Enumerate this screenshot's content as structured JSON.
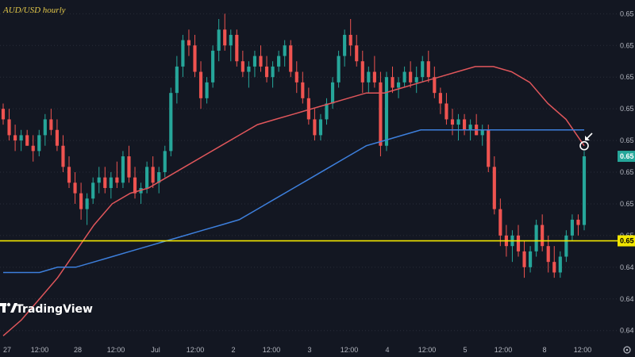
{
  "chart_data": {
    "type": "candlestick",
    "title": "AUD/USD hourly",
    "colors": {
      "background": "#131722",
      "up": "#26a69a",
      "down": "#ef5350",
      "ma_red": "#e0565b",
      "ma_blue": "#3d7fdc",
      "support_line": "#f2e600",
      "grid": "#2a2e39",
      "current_price_label": "#26a69a",
      "current_price_text": "#ffffff",
      "support_label": "#f2e600",
      "support_label_text": "#000000"
    },
    "x_ticks": [
      "27",
      "12:00",
      "28",
      "12:00",
      "Jul",
      "12:00",
      "2",
      "12:00",
      "3",
      "12:00",
      "4",
      "12:00",
      "5",
      "12:00",
      "8",
      "12:00"
    ],
    "y_ticks": [
      "0.65",
      "0.65",
      "0.65",
      "0.65",
      "0.65",
      "0.65",
      "0.65",
      "0.65",
      "0.64",
      "0.64",
      "0.64"
    ],
    "y_tick_values": [
      0.6578,
      0.6572,
      0.6566,
      0.656,
      0.6554,
      0.6548,
      0.6542,
      0.6536,
      0.653,
      0.6524,
      0.6518
    ],
    "ylim": [
      0.6516,
      0.658
    ],
    "current_price_label": "0.65",
    "support_label": "0.65",
    "support_level": 0.6535,
    "candles": [
      [
        0.656,
        0.6561,
        0.6557,
        0.6558
      ],
      [
        0.6558,
        0.656,
        0.6554,
        0.6555
      ],
      [
        0.6555,
        0.6557,
        0.6552,
        0.6554
      ],
      [
        0.6554,
        0.6556,
        0.6552,
        0.6555
      ],
      [
        0.6555,
        0.6556,
        0.6553,
        0.6553
      ],
      [
        0.6553,
        0.6555,
        0.655,
        0.6552
      ],
      [
        0.6552,
        0.6556,
        0.6551,
        0.6555
      ],
      [
        0.6555,
        0.6559,
        0.6553,
        0.6558
      ],
      [
        0.6558,
        0.656,
        0.6555,
        0.6556
      ],
      [
        0.6556,
        0.6558,
        0.6552,
        0.6553
      ],
      [
        0.6553,
        0.6555,
        0.6548,
        0.6549
      ],
      [
        0.6549,
        0.6551,
        0.6545,
        0.6546
      ],
      [
        0.6546,
        0.6548,
        0.6542,
        0.6544
      ],
      [
        0.6544,
        0.6546,
        0.6539,
        0.6541
      ],
      [
        0.6541,
        0.6544,
        0.6538,
        0.6543
      ],
      [
        0.6543,
        0.6547,
        0.6542,
        0.6546
      ],
      [
        0.6546,
        0.6549,
        0.6544,
        0.6547
      ],
      [
        0.6547,
        0.6549,
        0.6544,
        0.6545
      ],
      [
        0.6545,
        0.6548,
        0.6543,
        0.6547
      ],
      [
        0.6547,
        0.655,
        0.6545,
        0.6546
      ],
      [
        0.6546,
        0.6552,
        0.6545,
        0.6551
      ],
      [
        0.6551,
        0.6553,
        0.6546,
        0.6547
      ],
      [
        0.6547,
        0.6549,
        0.6543,
        0.6544
      ],
      [
        0.6544,
        0.6546,
        0.6542,
        0.6545
      ],
      [
        0.6545,
        0.655,
        0.6544,
        0.6549
      ],
      [
        0.6549,
        0.6551,
        0.6545,
        0.6546
      ],
      [
        0.6546,
        0.6549,
        0.6544,
        0.6548
      ],
      [
        0.6548,
        0.6553,
        0.6547,
        0.6552
      ],
      [
        0.6552,
        0.6564,
        0.6551,
        0.6563
      ],
      [
        0.6563,
        0.657,
        0.6561,
        0.6568
      ],
      [
        0.6568,
        0.6574,
        0.6566,
        0.6573
      ],
      [
        0.6573,
        0.6575,
        0.657,
        0.6572
      ],
      [
        0.6572,
        0.6574,
        0.6566,
        0.6567
      ],
      [
        0.6567,
        0.6569,
        0.656,
        0.6562
      ],
      [
        0.6562,
        0.6566,
        0.6561,
        0.6565
      ],
      [
        0.6565,
        0.6572,
        0.6564,
        0.6571
      ],
      [
        0.6571,
        0.6577,
        0.6569,
        0.6575
      ],
      [
        0.6575,
        0.6578,
        0.6571,
        0.6572
      ],
      [
        0.6572,
        0.6575,
        0.6569,
        0.6574
      ],
      [
        0.6574,
        0.6575,
        0.6568,
        0.6569
      ],
      [
        0.6569,
        0.6571,
        0.6566,
        0.6567
      ],
      [
        0.6567,
        0.6569,
        0.6564,
        0.6568
      ],
      [
        0.6568,
        0.6571,
        0.6566,
        0.657
      ],
      [
        0.657,
        0.6572,
        0.6567,
        0.6568
      ],
      [
        0.6568,
        0.657,
        0.6565,
        0.6566
      ],
      [
        0.6566,
        0.6569,
        0.6564,
        0.6568
      ],
      [
        0.6568,
        0.6571,
        0.6567,
        0.657
      ],
      [
        0.657,
        0.6573,
        0.6568,
        0.6572
      ],
      [
        0.6572,
        0.6573,
        0.6566,
        0.6567
      ],
      [
        0.6567,
        0.6569,
        0.6563,
        0.6565
      ],
      [
        0.6565,
        0.6567,
        0.6561,
        0.6562
      ],
      [
        0.6562,
        0.6564,
        0.6557,
        0.6558
      ],
      [
        0.6558,
        0.656,
        0.6554,
        0.6555
      ],
      [
        0.6555,
        0.6559,
        0.6554,
        0.6558
      ],
      [
        0.6558,
        0.6562,
        0.6557,
        0.6561
      ],
      [
        0.6561,
        0.6566,
        0.656,
        0.6565
      ],
      [
        0.6565,
        0.6571,
        0.6564,
        0.657
      ],
      [
        0.657,
        0.6575,
        0.6568,
        0.6574
      ],
      [
        0.6574,
        0.6577,
        0.657,
        0.6572
      ],
      [
        0.6572,
        0.6574,
        0.6568,
        0.6569
      ],
      [
        0.6569,
        0.6571,
        0.6563,
        0.6565
      ],
      [
        0.6565,
        0.6568,
        0.6563,
        0.6567
      ],
      [
        0.6567,
        0.657,
        0.6564,
        0.6565
      ],
      [
        0.6565,
        0.6567,
        0.6551,
        0.6553
      ],
      [
        0.6553,
        0.6567,
        0.6552,
        0.6566
      ],
      [
        0.6566,
        0.6568,
        0.6563,
        0.6564
      ],
      [
        0.6564,
        0.6566,
        0.6562,
        0.6565
      ],
      [
        0.6565,
        0.6568,
        0.6564,
        0.6567
      ],
      [
        0.6567,
        0.6569,
        0.6564,
        0.6565
      ],
      [
        0.6565,
        0.6568,
        0.6563,
        0.6566
      ],
      [
        0.6566,
        0.657,
        0.6565,
        0.6569
      ],
      [
        0.6569,
        0.6571,
        0.6565,
        0.6566
      ],
      [
        0.6566,
        0.6568,
        0.6562,
        0.6563
      ],
      [
        0.6563,
        0.6564,
        0.6559,
        0.6561
      ],
      [
        0.6561,
        0.6563,
        0.6557,
        0.6558
      ],
      [
        0.6558,
        0.656,
        0.6555,
        0.6557
      ],
      [
        0.6557,
        0.6559,
        0.6554,
        0.6558
      ],
      [
        0.6558,
        0.6559,
        0.6555,
        0.6556
      ],
      [
        0.6556,
        0.6558,
        0.6554,
        0.6557
      ],
      [
        0.6557,
        0.6559,
        0.6555,
        0.6555
      ],
      [
        0.6555,
        0.6557,
        0.6553,
        0.6556
      ],
      [
        0.6556,
        0.6557,
        0.6548,
        0.6549
      ],
      [
        0.6549,
        0.6551,
        0.654,
        0.6541
      ],
      [
        0.6541,
        0.6543,
        0.6534,
        0.6536
      ],
      [
        0.6536,
        0.6538,
        0.6532,
        0.6534
      ],
      [
        0.6534,
        0.6537,
        0.6531,
        0.6536
      ],
      [
        0.6536,
        0.6538,
        0.6532,
        0.6533
      ],
      [
        0.6533,
        0.6535,
        0.6528,
        0.653
      ],
      [
        0.653,
        0.6534,
        0.6529,
        0.6533
      ],
      [
        0.6533,
        0.6539,
        0.6532,
        0.6538
      ],
      [
        0.6538,
        0.654,
        0.6533,
        0.6534
      ],
      [
        0.6534,
        0.6536,
        0.6529,
        0.6531
      ],
      [
        0.6531,
        0.6534,
        0.6528,
        0.6529
      ],
      [
        0.6529,
        0.6533,
        0.6528,
        0.6532
      ],
      [
        0.6532,
        0.6537,
        0.6531,
        0.6536
      ],
      [
        0.6536,
        0.654,
        0.6535,
        0.6539
      ],
      [
        0.6539,
        0.654,
        0.6536,
        0.6538
      ],
      [
        0.6538,
        0.6552,
        0.6537,
        0.6551
      ]
    ],
    "series": [
      {
        "values": [
          0.6517,
          0.652,
          0.6524,
          0.6528,
          0.6533,
          0.6538,
          0.6542,
          0.6544,
          0.6545,
          0.6547,
          0.6549,
          0.6551,
          0.6553,
          0.6555,
          0.6557,
          0.6558,
          0.6559,
          0.656,
          0.6561,
          0.6562,
          0.6563,
          0.6563,
          0.6564,
          0.6565,
          0.6566,
          0.6567,
          0.6568,
          0.6568,
          0.6567,
          0.6565,
          0.6561,
          0.6558,
          0.6553
        ]
      },
      {
        "values": [
          0.6529,
          0.6529,
          0.6529,
          0.653,
          0.653,
          0.6531,
          0.6532,
          0.6533,
          0.6534,
          0.6535,
          0.6536,
          0.6537,
          0.6538,
          0.6539,
          0.6541,
          0.6543,
          0.6545,
          0.6547,
          0.6549,
          0.6551,
          0.6553,
          0.6554,
          0.6555,
          0.6556,
          0.6556,
          0.6556,
          0.6556,
          0.6556,
          0.6556,
          0.6556,
          0.6556,
          0.6556,
          0.6556
        ]
      }
    ],
    "legend": "none",
    "grid": true
  },
  "branding": {
    "name": "TradingView"
  },
  "icons": {
    "logo": "tradingview-logo-icon",
    "settings": "settings-gear-icon",
    "marker": "circle-marker-icon",
    "arrow": "annotation-arrow-icon"
  }
}
